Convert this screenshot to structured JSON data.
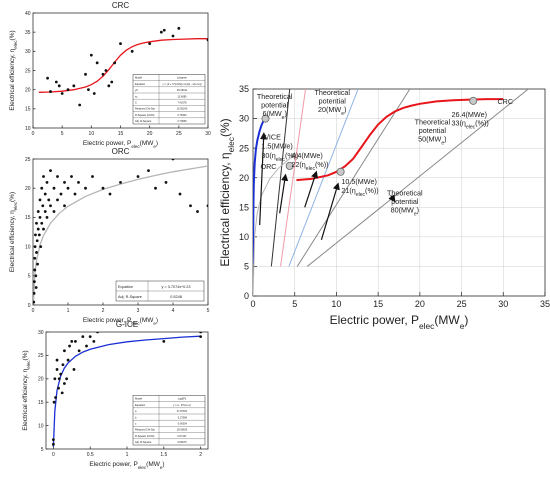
{
  "chart_data": [
    {
      "type": "scatter",
      "title": "CRC",
      "xlabel": "Electric power, P",
      "xlabel_sub": "elec",
      "xlabel_unit": "(MW",
      "xlabel_unit_sub": "e",
      "ylabel": "Electrical efficiency, η",
      "ylabel_sub": "elec",
      "ylabel_unit": "(%)",
      "xlim": [
        0,
        30
      ],
      "ylim": [
        10,
        40
      ],
      "x_ticks": [
        0,
        5,
        10,
        15,
        20,
        25,
        30
      ],
      "y_ticks": [
        10,
        15,
        20,
        25,
        30,
        35,
        40
      ],
      "grid": false,
      "points": [
        [
          2.5,
          23
        ],
        [
          3,
          19.5
        ],
        [
          4,
          22
        ],
        [
          4.5,
          21
        ],
        [
          5,
          19
        ],
        [
          6,
          20
        ],
        [
          7,
          21
        ],
        [
          8,
          16
        ],
        [
          9,
          24
        ],
        [
          9.5,
          20
        ],
        [
          10,
          29
        ],
        [
          10.5,
          19
        ],
        [
          11,
          27
        ],
        [
          12,
          24
        ],
        [
          12.5,
          25
        ],
        [
          13,
          21
        ],
        [
          13.5,
          22
        ],
        [
          14,
          27
        ],
        [
          15,
          32
        ],
        [
          17,
          30
        ],
        [
          20,
          32
        ],
        [
          22,
          35
        ],
        [
          22.5,
          35.5
        ],
        [
          24,
          34
        ],
        [
          25,
          36
        ],
        [
          30,
          33
        ]
      ],
      "fit_line": {
        "color": "#e8151b",
        "x": [
          1,
          3,
          5,
          7,
          9,
          10,
          11,
          12,
          13,
          14,
          15,
          16,
          17,
          18,
          19,
          20,
          22,
          24,
          26,
          28,
          30
        ],
        "y": [
          19.3,
          19.4,
          19.6,
          20,
          20.7,
          21.3,
          22.2,
          23.5,
          25.2,
          27.2,
          29,
          30.3,
          31.2,
          31.8,
          32.2,
          32.5,
          32.9,
          33.1,
          33.2,
          33.3,
          33.3
        ]
      },
      "fit_table": {
        "rows": [
          [
            "Model",
            "Langevin"
          ],
          [
            "Equation",
            "y = y0 + C*(coth((x-xc)/s) - s/(x-xc))"
          ],
          [
            "y0",
            "26.26011"
          ],
          [
            "xc",
            "13.6085"
          ],
          [
            "C",
            "7.41578"
          ],
          [
            "Reduced Chi-Sqr",
            "15.05240"
          ],
          [
            "R-Square (COD)",
            "0.75323"
          ],
          [
            "Adj. R-Square",
            "0.73839"
          ]
        ]
      }
    },
    {
      "type": "scatter",
      "title": "ORC",
      "xlabel": "Electric power, P",
      "xlabel_sub": "elec",
      "xlabel_unit": "(MW",
      "xlabel_unit_sub": "e",
      "ylabel": "Electrical efficiency, η",
      "ylabel_sub": "elec",
      "ylabel_unit": "(%)",
      "xlim": [
        0,
        5
      ],
      "ylim": [
        0,
        25
      ],
      "x_ticks": [
        0,
        1,
        2,
        3,
        4,
        5
      ],
      "y_ticks": [
        0,
        5,
        10,
        15,
        20,
        25
      ],
      "grid": false,
      "points": [
        [
          0.02,
          0.5
        ],
        [
          0.03,
          2
        ],
        [
          0.04,
          4
        ],
        [
          0.05,
          6
        ],
        [
          0.05,
          8
        ],
        [
          0.06,
          10
        ],
        [
          0.07,
          12
        ],
        [
          0.08,
          5
        ],
        [
          0.09,
          3
        ],
        [
          0.1,
          9
        ],
        [
          0.1,
          14
        ],
        [
          0.12,
          11
        ],
        [
          0.13,
          7
        ],
        [
          0.15,
          13
        ],
        [
          0.15,
          16
        ],
        [
          0.18,
          12
        ],
        [
          0.2,
          15
        ],
        [
          0.2,
          18
        ],
        [
          0.22,
          10
        ],
        [
          0.25,
          14
        ],
        [
          0.25,
          20
        ],
        [
          0.28,
          17
        ],
        [
          0.3,
          13
        ],
        [
          0.3,
          22
        ],
        [
          0.35,
          16
        ],
        [
          0.35,
          19
        ],
        [
          0.4,
          15
        ],
        [
          0.4,
          21
        ],
        [
          0.45,
          18
        ],
        [
          0.5,
          17
        ],
        [
          0.5,
          23
        ],
        [
          0.6,
          16
        ],
        [
          0.6,
          20
        ],
        [
          0.7,
          18
        ],
        [
          0.7,
          22
        ],
        [
          0.8,
          19
        ],
        [
          0.9,
          17
        ],
        [
          0.9,
          21
        ],
        [
          1.0,
          20
        ],
        [
          1.1,
          22
        ],
        [
          1.2,
          19
        ],
        [
          1.3,
          21
        ],
        [
          1.5,
          20
        ],
        [
          1.7,
          22
        ],
        [
          2.0,
          20
        ],
        [
          2.2,
          19
        ],
        [
          2.5,
          21
        ],
        [
          3.0,
          22
        ],
        [
          3.3,
          23
        ],
        [
          3.5,
          20
        ],
        [
          3.8,
          21
        ],
        [
          4.0,
          25
        ],
        [
          4.2,
          19
        ],
        [
          4.5,
          17
        ],
        [
          4.7,
          16
        ],
        [
          5.0,
          17
        ]
      ],
      "fit_line": {
        "color": "#b5b5b5",
        "x": [
          0.01,
          0.05,
          0.1,
          0.2,
          0.3,
          0.5,
          0.75,
          1,
          1.5,
          2,
          2.5,
          3,
          3.5,
          4,
          4.5,
          5
        ],
        "y": [
          0.2,
          5.3,
          7.6,
          10.3,
          11.9,
          14,
          15.7,
          16.9,
          18.6,
          19.8,
          20.7,
          21.5,
          22.2,
          22.8,
          23.3,
          23.8
        ]
      },
      "fit_table": {
        "rows": [
          [
            "Equation",
            "y = 3.7074x^0.23"
          ],
          [
            "Adj. R-Square",
            "0.5248"
          ]
        ]
      }
    },
    {
      "type": "scatter",
      "title": "G-ICE",
      "xlabel": "Electric power, P",
      "xlabel_sub": "elec",
      "xlabel_unit": "(MW",
      "xlabel_unit_sub": "e",
      "ylabel": "Electrical efficiency, η",
      "ylabel_sub": "elec",
      "ylabel_unit": "(%)",
      "xlim": [
        -0.1,
        2.1
      ],
      "ylim": [
        5,
        30
      ],
      "x_ticks": [
        0.0,
        0.5,
        1.0,
        1.5,
        2.0
      ],
      "y_ticks": [
        5,
        10,
        15,
        20,
        25,
        30
      ],
      "grid": false,
      "points": [
        [
          0.0,
          6
        ],
        [
          0.0,
          7
        ],
        [
          0.01,
          15
        ],
        [
          0.02,
          20
        ],
        [
          0.03,
          16
        ],
        [
          0.05,
          22
        ],
        [
          0.05,
          24
        ],
        [
          0.07,
          18
        ],
        [
          0.08,
          20
        ],
        [
          0.1,
          21
        ],
        [
          0.12,
          17
        ],
        [
          0.13,
          23
        ],
        [
          0.15,
          19
        ],
        [
          0.15,
          26
        ],
        [
          0.18,
          20
        ],
        [
          0.2,
          24
        ],
        [
          0.22,
          27
        ],
        [
          0.25,
          28
        ],
        [
          0.28,
          22
        ],
        [
          0.3,
          28
        ],
        [
          0.35,
          26
        ],
        [
          0.4,
          29
        ],
        [
          0.45,
          27
        ],
        [
          0.5,
          29
        ],
        [
          0.55,
          28
        ],
        [
          0.6,
          30
        ],
        [
          1.5,
          28
        ],
        [
          2.0,
          29
        ],
        [
          2.0,
          30
        ]
      ],
      "fit_line": {
        "color": "#1a2fd4",
        "x": [
          0,
          0.02,
          0.05,
          0.1,
          0.15,
          0.2,
          0.3,
          0.4,
          0.5,
          0.75,
          1,
          1.25,
          1.5,
          1.75,
          2
        ],
        "y": [
          5.5,
          13,
          17.5,
          20.6,
          22.3,
          23.4,
          24.8,
          25.7,
          26.3,
          27.3,
          27.9,
          28.3,
          28.6,
          28.9,
          29.1
        ]
      },
      "fit_table": {
        "rows": [
          [
            "Model",
            "Log3P1"
          ],
          [
            "Equation",
            "y = a - b*ln(x+c)"
          ],
          [
            "a",
            "27.87031"
          ],
          [
            "b",
            "-2.27068"
          ],
          [
            "c",
            "-0.00354"
          ],
          [
            "Reduced Chi-Sqr",
            "18.93835"
          ],
          [
            "R-Square (COD)",
            "0.67147"
          ],
          [
            "Adj. R-Square",
            "0.65070"
          ]
        ]
      }
    },
    {
      "type": "line",
      "title": "",
      "xlabel": "Electric power, P",
      "xlabel_sub": "elec",
      "xlabel_unit": "(MW",
      "xlabel_unit_sub": "e",
      "ylabel": "Electrical efficiency, η",
      "ylabel_sub": "elec",
      "ylabel_unit": "(%)",
      "xlim": [
        0,
        35
      ],
      "ylim": [
        0,
        35
      ],
      "x_ticks": [
        0,
        5,
        10,
        15,
        20,
        25,
        30,
        35
      ],
      "y_ticks": [
        0,
        5,
        10,
        15,
        20,
        25,
        30,
        35
      ],
      "grid": true,
      "series": [
        {
          "name": "G/ICE",
          "color": "#1a2fd4",
          "width": 2,
          "x": [
            0,
            0.05,
            0.1,
            0.2,
            0.35,
            0.5,
            0.75,
            1,
            1.25,
            1.5
          ],
          "y": [
            5.5,
            15,
            19,
            22.5,
            24.8,
            26.2,
            27.7,
            28.8,
            29.6,
            30.2
          ]
        },
        {
          "name": "ORC",
          "color": "#b5b5b5",
          "width": 1,
          "x": [
            0,
            0.2,
            0.5,
            1,
            2,
            3,
            4,
            5
          ],
          "y": [
            0,
            10.3,
            14,
            16.9,
            19.8,
            21.5,
            22.8,
            23.8
          ]
        },
        {
          "name": "CRC",
          "color": "#e8151b",
          "width": 2,
          "x": [
            5.2,
            7,
            9,
            10,
            11,
            12,
            13,
            14,
            15,
            16,
            17,
            18,
            19,
            20,
            22,
            24,
            26,
            28,
            30
          ],
          "y": [
            19.6,
            19.8,
            20.4,
            21,
            21.9,
            23.2,
            25.2,
            27.2,
            29,
            30.3,
            31.2,
            31.8,
            32.2,
            32.5,
            32.9,
            33.1,
            33.2,
            33.3,
            33.3
          ]
        }
      ],
      "potential_lines": [
        {
          "color": "#333333",
          "x": [
            2.2,
            4.4
          ],
          "y": [
            5,
            35
          ]
        },
        {
          "color": "#f29aa6",
          "x": [
            3.3,
            6.3
          ],
          "y": [
            5,
            35
          ]
        },
        {
          "color": "#8fb3e6",
          "x": [
            4.3,
            12.6
          ],
          "y": [
            5,
            35
          ]
        },
        {
          "color": "#8a8a8a",
          "x": [
            5.3,
            18.8
          ],
          "y": [
            5,
            35
          ]
        },
        {
          "color": "#8a8a8a",
          "x": [
            6.5,
            33
          ],
          "y": [
            5,
            35
          ]
        }
      ],
      "markers": [
        {
          "x": 1.5,
          "y": 30
        },
        {
          "x": 4.4,
          "y": 22
        },
        {
          "x": 10.5,
          "y": 21
        },
        {
          "x": 26.4,
          "y": 33
        }
      ],
      "arrows": [
        {
          "x1": 0.8,
          "y1": 12,
          "x2": 1.3,
          "y2": 27.5
        },
        {
          "x1": 3.2,
          "y1": 14,
          "x2": 3.9,
          "y2": 20.5
        },
        {
          "x1": 6.2,
          "y1": 15,
          "x2": 7.6,
          "y2": 21
        },
        {
          "x1": 8.2,
          "y1": 9.5,
          "x2": 10.2,
          "y2": 19
        },
        {
          "x1": 16.5,
          "y1": 17,
          "x2": 17,
          "y2": 16
        }
      ],
      "annotations": [
        {
          "lines": [
            "Theoretical",
            "potential",
            "6(MW",
            ")"
          ],
          "sub": "e"
        },
        {
          "lines": [
            "Theoretical",
            "potential",
            "20(MW",
            ")"
          ],
          "sub": "e"
        },
        {
          "lines": [
            "Theoretical",
            "potential",
            "50(MW",
            ")"
          ],
          "sub": "e"
        },
        {
          "lines": [
            "Theoretical",
            "potential",
            "80(MW",
            ")"
          ],
          "sub": "e"
        }
      ],
      "labels": {
        "gice": "G/ICE",
        "gice_p": "1.5(MWe)",
        "gice_e": "30(η",
        "orc": "ORC",
        "orc_p": "4.4(MWe)",
        "orc_e": "22(η",
        "mid_p": "10.5(MWe)",
        "mid_e": "21(η",
        "crc": "CRC",
        "crc_p": "26.4(MWe)",
        "crc_e": "33(η",
        "eta_sub": "elec",
        "eta_close": "(%))",
        "tp_6_a": "Theoretical",
        "tp_6_b": "potential",
        "tp_6_c": "6(MW",
        "tp_20_a": "Theoretical",
        "tp_20_b": "potential",
        "tp_20_c": "20(MW",
        "tp_50_a": "Theoretical",
        "tp_50_b": "potential",
        "tp_50_c": "50(MW",
        "tp_80_a": "Theoretical",
        "tp_80_b": "potential",
        "tp_80_c": "80(MW",
        "mw_sub": "e",
        "close_paren": ")"
      }
    }
  ]
}
